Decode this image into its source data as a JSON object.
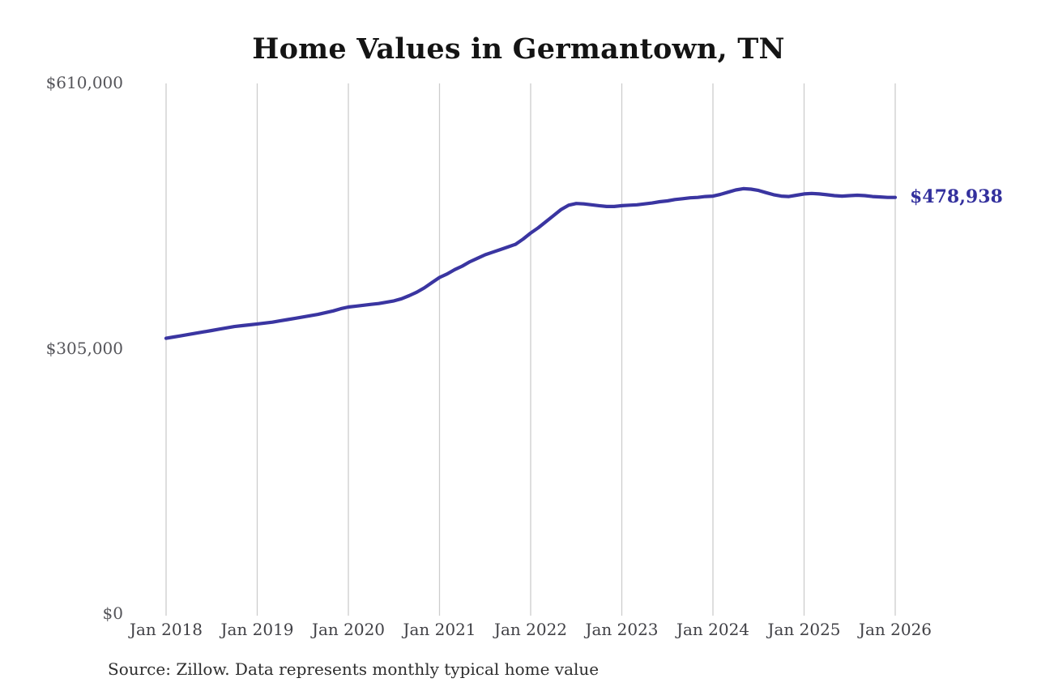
{
  "page": {
    "background_color": "#ffffff"
  },
  "chart": {
    "title": "Home Values in Germantown, TN",
    "end_label": "$478,938",
    "source_note": "Source: Zillow. Data represents monthly typical home value",
    "colors": {
      "line": "#3a35a1",
      "end_label": "#33309d",
      "grid": "#cccccc",
      "y_tick_text": "#55555a",
      "x_tick_text": "#414146",
      "title_text": "#141414",
      "source_text": "#2e2e2e"
    }
  },
  "chart_data": {
    "type": "line",
    "title": "Home Values in Germantown, TN",
    "xlabel": "",
    "ylabel": "",
    "ylim": [
      0,
      610000
    ],
    "grid": "vertical-only",
    "legend_position": "none",
    "x_tick_labels": [
      "Jan 2018",
      "Jan 2019",
      "Jan 2020",
      "Jan 2021",
      "Jan 2022",
      "Jan 2023",
      "Jan 2024",
      "Jan 2025",
      "Jan 2026"
    ],
    "y_tick_labels": [
      "$610,000",
      "$305,000",
      "$0"
    ],
    "y_tick_values": [
      610000,
      305000,
      0
    ],
    "x_range": [
      "2018-01",
      "2026-01"
    ],
    "latest_value": 478938,
    "latest_value_label": "$478,938",
    "annotation": "Latest monthly typical home value labeled at line end",
    "source": "Source: Zillow. Data represents monthly typical home value",
    "series": [
      {
        "name": "Typical home value (monthly)",
        "start_month": "2018-01",
        "values": [
          317000,
          318500,
          320000,
          321500,
          323000,
          324500,
          326000,
          327500,
          329000,
          330500,
          331500,
          332500,
          333500,
          334500,
          335500,
          337000,
          338500,
          340000,
          341500,
          343000,
          344500,
          346500,
          348500,
          351000,
          353000,
          354000,
          355000,
          356000,
          357000,
          358500,
          360000,
          362500,
          366000,
          370000,
          375000,
          381000,
          387000,
          391000,
          396000,
          400000,
          405000,
          409000,
          413000,
          416000,
          419000,
          422000,
          425000,
          431000,
          438000,
          444000,
          451000,
          458000,
          465000,
          470000,
          472000,
          471500,
          470500,
          469500,
          468500,
          468500,
          469500,
          470000,
          470500,
          471500,
          472500,
          474000,
          475000,
          476500,
          477500,
          478500,
          479000,
          480000,
          480500,
          482500,
          485000,
          487500,
          489000,
          488500,
          487000,
          484500,
          482000,
          480500,
          480000,
          481500,
          483000,
          483500,
          483000,
          482000,
          481000,
          480500,
          481000,
          481500,
          481000,
          480000,
          479500,
          479000,
          478938
        ]
      }
    ]
  }
}
